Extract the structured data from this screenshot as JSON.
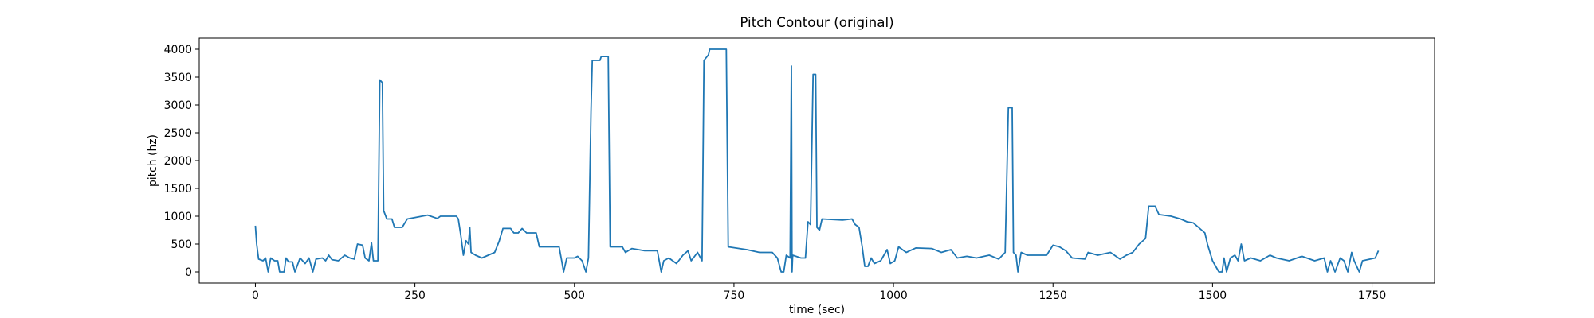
{
  "chart_data": {
    "type": "line",
    "title": "Pitch Contour (original)",
    "x_label": "time (sec)",
    "y_label": "pitch (hz)",
    "xlim": [
      -88,
      1848
    ],
    "ylim": [
      -200,
      4200
    ],
    "xticks": [
      0,
      250,
      500,
      750,
      1000,
      1250,
      1500,
      1750
    ],
    "yticks": [
      0,
      500,
      1000,
      1500,
      2000,
      2500,
      3000,
      3500,
      4000
    ],
    "grid": false,
    "series": [
      {
        "color": "#1f77b4",
        "x": [
          0,
          2,
          5,
          12,
          16,
          20,
          24,
          30,
          35,
          38,
          45,
          48,
          52,
          58,
          62,
          70,
          78,
          84,
          90,
          95,
          105,
          110,
          115,
          120,
          130,
          140,
          148,
          155,
          160,
          168,
          172,
          178,
          182,
          185,
          192,
          195,
          199,
          201,
          206,
          214,
          218,
          230,
          238,
          270,
          285,
          290,
          315,
          318,
          322,
          326,
          330,
          334,
          336,
          338,
          345,
          355,
          365,
          375,
          382,
          388,
          400,
          405,
          412,
          418,
          425,
          440,
          445,
          476,
          480,
          483,
          488,
          500,
          505,
          512,
          518,
          522,
          526,
          528,
          540,
          542,
          553,
          556,
          575,
          580,
          590,
          610,
          630,
          636,
          640,
          648,
          660,
          670,
          678,
          683,
          693,
          700,
          703,
          710,
          712,
          738,
          741,
          770,
          790,
          810,
          818,
          824,
          828,
          832,
          838,
          840,
          841,
          842,
          855,
          862,
          866,
          870,
          874,
          878,
          880,
          884,
          888,
          920,
          935,
          940,
          946,
          951,
          955,
          960,
          965,
          970,
          980,
          990,
          995,
          1002,
          1008,
          1020,
          1035,
          1060,
          1075,
          1090,
          1100,
          1115,
          1130,
          1150,
          1165,
          1175,
          1180,
          1186,
          1188,
          1192,
          1195,
          1200,
          1210,
          1240,
          1250,
          1260,
          1270,
          1280,
          1300,
          1305,
          1320,
          1340,
          1355,
          1365,
          1375,
          1385,
          1395,
          1400,
          1410,
          1416,
          1435,
          1450,
          1460,
          1470,
          1478,
          1488,
          1492,
          1500,
          1505,
          1510,
          1515,
          1518,
          1522,
          1528,
          1535,
          1540,
          1545,
          1550,
          1560,
          1575,
          1590,
          1600,
          1620,
          1640,
          1660,
          1675,
          1680,
          1685,
          1692,
          1700,
          1706,
          1712,
          1718,
          1722,
          1730,
          1735,
          1755,
          1760
        ],
        "values": [
          830,
          500,
          230,
          200,
          250,
          0,
          250,
          200,
          200,
          0,
          0,
          250,
          180,
          180,
          0,
          250,
          150,
          250,
          0,
          230,
          250,
          200,
          300,
          220,
          200,
          300,
          250,
          230,
          500,
          480,
          250,
          200,
          520,
          200,
          200,
          3450,
          3400,
          1100,
          950,
          950,
          800,
          800,
          950,
          1020,
          960,
          1000,
          1000,
          950,
          650,
          300,
          560,
          500,
          800,
          350,
          300,
          250,
          300,
          350,
          550,
          780,
          780,
          700,
          700,
          780,
          700,
          700,
          450,
          450,
          200,
          0,
          250,
          250,
          280,
          200,
          0,
          250,
          2900,
          3800,
          3800,
          3870,
          3870,
          450,
          450,
          350,
          420,
          380,
          380,
          0,
          200,
          250,
          150,
          300,
          380,
          200,
          350,
          200,
          3800,
          3900,
          4000,
          4000,
          450,
          400,
          350,
          350,
          250,
          0,
          0,
          300,
          250,
          3700,
          0,
          300,
          250,
          250,
          900,
          850,
          3550,
          3550,
          800,
          750,
          950,
          930,
          950,
          850,
          800,
          450,
          100,
          100,
          250,
          150,
          200,
          400,
          150,
          200,
          450,
          350,
          430,
          420,
          350,
          400,
          250,
          280,
          250,
          300,
          230,
          350,
          2950,
          2950,
          350,
          300,
          0,
          350,
          300,
          300,
          480,
          450,
          380,
          250,
          230,
          350,
          300,
          350,
          230,
          300,
          350,
          500,
          600,
          1180,
          1180,
          1030,
          1000,
          950,
          900,
          880,
          800,
          700,
          500,
          200,
          100,
          0,
          0,
          250,
          0,
          250,
          300,
          200,
          500,
          200,
          250,
          200,
          300,
          250,
          200,
          280,
          200,
          250,
          0,
          200,
          0,
          250,
          200,
          0,
          350,
          200,
          0,
          200,
          250,
          380
        ]
      }
    ]
  }
}
